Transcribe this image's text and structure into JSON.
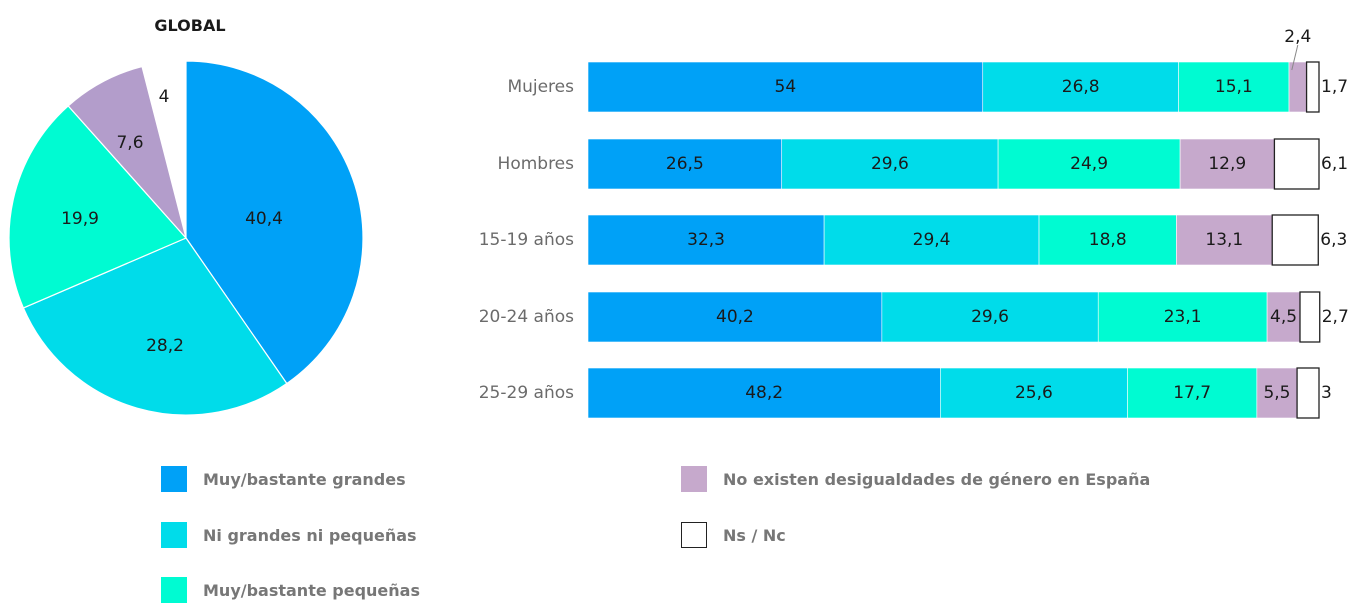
{
  "chart_data": [
    {
      "type": "pie",
      "title": "GLOBAL",
      "slices": [
        {
          "label": "Muy/bastante grandes",
          "value": 40.4,
          "text": "40,4",
          "color": "#00a1f7"
        },
        {
          "label": "Ni grandes ni pequeñas",
          "value": 28.2,
          "text": "28,2",
          "color": "#00dcea"
        },
        {
          "label": "Muy/bastante pequeñas",
          "value": 19.9,
          "text": "19,9",
          "color": "#00fbd2"
        },
        {
          "label": "No existen desigualdades de género en España",
          "value": 7.6,
          "text": "7,6",
          "color": "#b39dcb"
        },
        {
          "label": "Ns / Nc",
          "value": 4,
          "text": "4",
          "color": "#ffffff"
        }
      ]
    },
    {
      "type": "bar",
      "orientation": "horizontal",
      "stacked": true,
      "categories": [
        "Mujeres",
        "Hombres",
        "15-19 años",
        "20-24 años",
        "25-29 años"
      ],
      "series": [
        {
          "name": "Muy/bastante grandes",
          "color": "#00a1f7",
          "values": [
            54,
            26.5,
            32.3,
            40.2,
            48.2
          ],
          "labels": [
            "54",
            "26,5",
            "32,3",
            "40,2",
            "48,2"
          ]
        },
        {
          "name": "Ni grandes ni pequeñas",
          "color": "#00dcea",
          "values": [
            26.8,
            29.6,
            29.4,
            29.6,
            25.6
          ],
          "labels": [
            "26,8",
            "29,6",
            "29,4",
            "29,6",
            "25,6"
          ]
        },
        {
          "name": "Muy/bastante pequeñas",
          "color": "#00fbd2",
          "values": [
            15.1,
            24.9,
            18.8,
            23.1,
            17.7
          ],
          "labels": [
            "15,1",
            "24,9",
            "18,8",
            "23,1",
            "17,7"
          ]
        },
        {
          "name": "No existen desigualdades de género en España",
          "color": "#c6a9cc",
          "values": [
            2.4,
            12.9,
            13.1,
            4.5,
            5.5
          ],
          "labels": [
            "2,4",
            "12,9",
            "13,1",
            "4,5",
            "5,5"
          ]
        },
        {
          "name": "Ns / Nc",
          "color": "#ffffff",
          "values": [
            1.7,
            6.1,
            6.3,
            2.7,
            3
          ],
          "labels": [
            "1,7",
            "6,1",
            "6,3",
            "2,7",
            "3"
          ]
        }
      ],
      "xlim": [
        0,
        100
      ]
    }
  ],
  "legend": [
    {
      "label": "Muy/bastante grandes",
      "color": "#00a1f7"
    },
    {
      "label": "Ni grandes ni pequeñas",
      "color": "#00dcea"
    },
    {
      "label": "Muy/bastante pequeñas",
      "color": "#00fbd2"
    },
    {
      "label": "No existen desigualdades de género en España",
      "color": "#c6a9cc"
    },
    {
      "label": "Ns / Nc",
      "color": "#ffffff"
    }
  ]
}
